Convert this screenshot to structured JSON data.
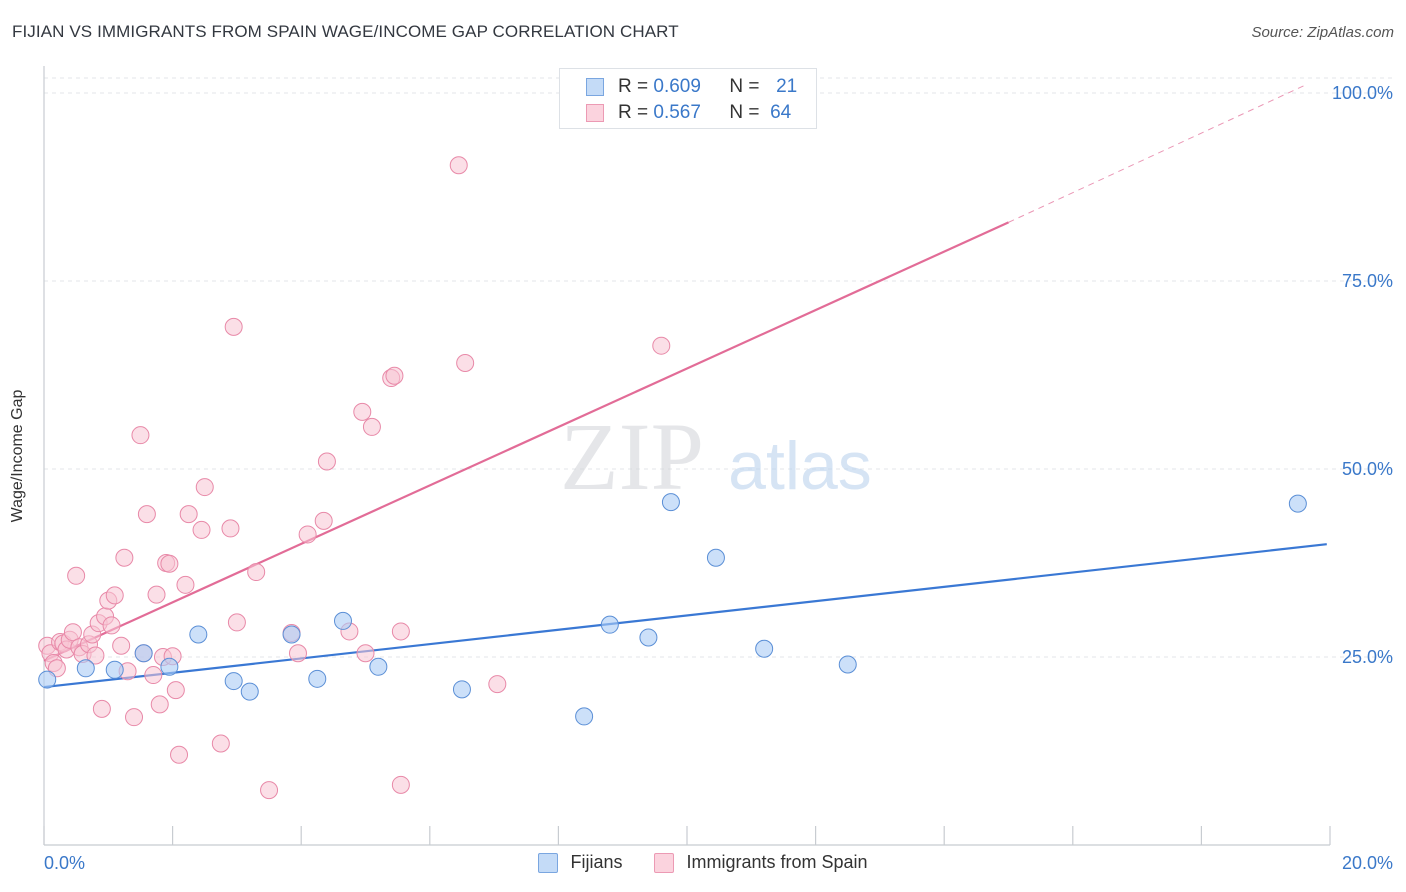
{
  "title": "FIJIAN VS IMMIGRANTS FROM SPAIN WAGE/INCOME GAP CORRELATION CHART",
  "source": "Source: ZipAtlas.com",
  "watermark": {
    "zip": "ZIP",
    "atlas": "atlas"
  },
  "legend": {
    "rows": [
      {
        "r_label": "R =",
        "r_value": "0.609",
        "n_label": "N =",
        "n_value": "21"
      },
      {
        "r_label": "R =",
        "r_value": "0.567",
        "n_label": "N =",
        "n_value": "64"
      }
    ]
  },
  "bottom_legend": {
    "fijians": "Fijians",
    "spain": "Immigrants from Spain"
  },
  "colors": {
    "fijians_fill": "#aaccf5",
    "fijians_stroke": "#5b8fd6",
    "fijians_line": "#3a78d4",
    "spain_fill": "#f8c4d3",
    "spain_stroke": "#e889a8",
    "spain_line": "#e26c97",
    "tick_label": "#3a78c9",
    "grid": "#e3e6ea"
  },
  "chart_data": {
    "type": "scatter",
    "title": "FIJIAN VS IMMIGRANTS FROM SPAIN WAGE/INCOME GAP CORRELATION CHART",
    "xlabel": "",
    "ylabel": "Wage/Income Gap",
    "xlim": [
      0,
      20
    ],
    "ylim": [
      0,
      102
    ],
    "x_tick_labels": [
      "0.0%",
      "20.0%"
    ],
    "y_ticks": [
      25,
      50,
      75,
      100
    ],
    "y_tick_labels": [
      "25.0%",
      "50.0%",
      "75.0%",
      "100.0%"
    ],
    "grid": true,
    "legend_position": "top-center",
    "series": [
      {
        "name": "Fijians",
        "r": 0.609,
        "n": 21,
        "trend": {
          "x": [
            0,
            19.95
          ],
          "y": [
            21.0,
            40.0
          ]
        },
        "points": [
          [
            0.05,
            22.0
          ],
          [
            0.65,
            23.5
          ],
          [
            1.1,
            23.3
          ],
          [
            1.55,
            25.5
          ],
          [
            1.95,
            23.7
          ],
          [
            2.4,
            28.0
          ],
          [
            2.95,
            21.8
          ],
          [
            3.2,
            20.4
          ],
          [
            3.85,
            28.0
          ],
          [
            4.25,
            22.1
          ],
          [
            4.65,
            29.8
          ],
          [
            5.2,
            23.7
          ],
          [
            6.5,
            20.7
          ],
          [
            8.4,
            17.1
          ],
          [
            8.8,
            29.3
          ],
          [
            9.4,
            27.6
          ],
          [
            9.75,
            45.6
          ],
          [
            10.45,
            38.2
          ],
          [
            11.2,
            26.1
          ],
          [
            12.5,
            24.0
          ],
          [
            19.5,
            45.4
          ]
        ]
      },
      {
        "name": "Immigrants from Spain",
        "r": 0.567,
        "n": 64,
        "trend": {
          "x": [
            0,
            15.0
          ],
          "y": [
            24.5,
            82.8
          ]
        },
        "trend_extension": {
          "x": [
            15.0,
            19.6
          ],
          "y": [
            82.8,
            101.0
          ]
        },
        "points": [
          [
            0.05,
            26.5
          ],
          [
            0.1,
            25.5
          ],
          [
            0.15,
            24.2
          ],
          [
            0.2,
            23.5
          ],
          [
            0.25,
            27.0
          ],
          [
            0.3,
            26.8
          ],
          [
            0.35,
            26.0
          ],
          [
            0.4,
            27.3
          ],
          [
            0.45,
            28.3
          ],
          [
            0.5,
            35.8
          ],
          [
            0.55,
            26.3
          ],
          [
            0.6,
            25.4
          ],
          [
            0.7,
            26.7
          ],
          [
            0.75,
            28.0
          ],
          [
            0.8,
            25.2
          ],
          [
            0.85,
            29.5
          ],
          [
            0.9,
            18.1
          ],
          [
            0.95,
            30.4
          ],
          [
            1.0,
            32.5
          ],
          [
            1.05,
            29.2
          ],
          [
            1.1,
            33.2
          ],
          [
            1.2,
            26.5
          ],
          [
            1.25,
            38.2
          ],
          [
            1.3,
            23.1
          ],
          [
            1.4,
            17.0
          ],
          [
            1.5,
            54.5
          ],
          [
            1.55,
            25.5
          ],
          [
            1.6,
            44.0
          ],
          [
            1.7,
            22.6
          ],
          [
            1.75,
            33.3
          ],
          [
            1.8,
            18.7
          ],
          [
            1.85,
            25.0
          ],
          [
            1.9,
            37.5
          ],
          [
            1.95,
            37.4
          ],
          [
            2.0,
            25.1
          ],
          [
            2.05,
            20.6
          ],
          [
            2.1,
            12.0
          ],
          [
            2.2,
            34.6
          ],
          [
            2.25,
            44.0
          ],
          [
            2.45,
            41.9
          ],
          [
            2.5,
            47.6
          ],
          [
            2.75,
            13.5
          ],
          [
            2.9,
            42.1
          ],
          [
            2.95,
            68.9
          ],
          [
            3.0,
            29.6
          ],
          [
            3.3,
            36.3
          ],
          [
            3.5,
            7.3
          ],
          [
            3.85,
            28.2
          ],
          [
            3.95,
            25.5
          ],
          [
            4.1,
            41.3
          ],
          [
            4.35,
            43.1
          ],
          [
            4.4,
            51.0
          ],
          [
            4.75,
            28.4
          ],
          [
            4.95,
            57.6
          ],
          [
            5.0,
            25.5
          ],
          [
            5.1,
            55.6
          ],
          [
            5.4,
            62.1
          ],
          [
            5.45,
            62.4
          ],
          [
            5.55,
            28.4
          ],
          [
            5.55,
            8.0
          ],
          [
            6.45,
            90.4
          ],
          [
            6.55,
            64.1
          ],
          [
            7.05,
            21.4
          ],
          [
            9.6,
            66.4
          ]
        ]
      }
    ]
  }
}
